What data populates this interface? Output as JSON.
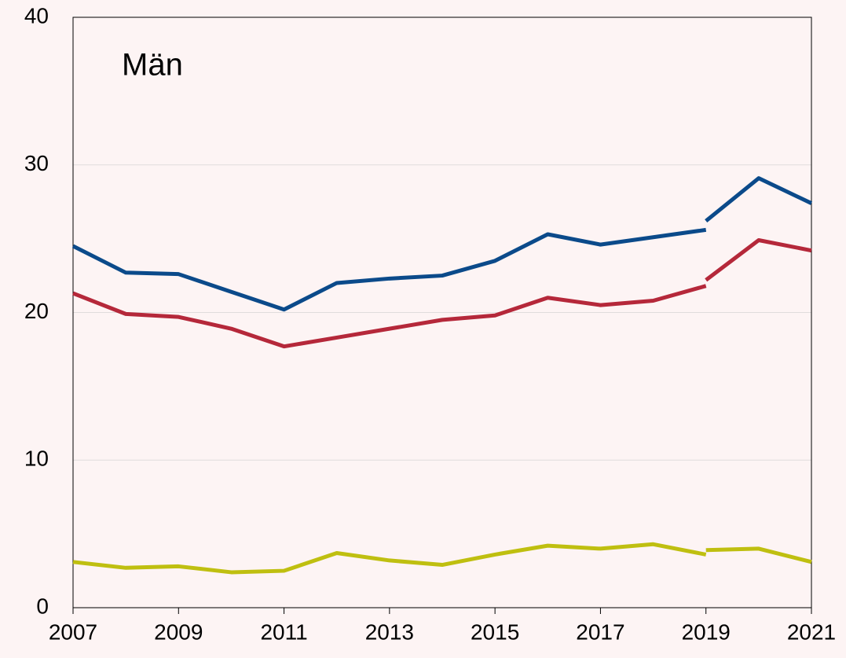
{
  "chart_data": {
    "type": "line",
    "title": "Män",
    "series": [
      {
        "color": "#0b4a8a",
        "x": [
          2007,
          2008,
          2009,
          2010,
          2011,
          2012,
          2013,
          2014,
          2015,
          2016,
          2017,
          2018,
          2019
        ],
        "values": [
          24.5,
          22.7,
          22.6,
          21.4,
          20.2,
          22.0,
          22.3,
          22.5,
          23.5,
          25.3,
          24.6,
          25.1,
          25.6
        ]
      },
      {
        "color": "#0b4a8a",
        "x": [
          2019,
          2020,
          2021
        ],
        "values": [
          26.2,
          29.1,
          27.4
        ]
      },
      {
        "color": "#b5283a",
        "x": [
          2007,
          2008,
          2009,
          2010,
          2011,
          2012,
          2013,
          2014,
          2015,
          2016,
          2017,
          2018,
          2019
        ],
        "values": [
          21.3,
          19.9,
          19.7,
          18.9,
          17.7,
          18.3,
          18.9,
          19.5,
          19.8,
          21.0,
          20.5,
          20.8,
          21.8
        ]
      },
      {
        "color": "#b5283a",
        "x": [
          2019,
          2020,
          2021
        ],
        "values": [
          22.2,
          24.9,
          24.2
        ]
      },
      {
        "color": "#bfbf10",
        "x": [
          2007,
          2008,
          2009,
          2010,
          2011,
          2012,
          2013,
          2014,
          2015,
          2016,
          2017,
          2018,
          2019
        ],
        "values": [
          3.1,
          2.7,
          2.8,
          2.4,
          2.5,
          3.7,
          3.2,
          2.9,
          3.6,
          4.2,
          4.0,
          4.3,
          3.6
        ]
      },
      {
        "color": "#bfbf10",
        "x": [
          2019,
          2020,
          2021
        ],
        "values": [
          3.9,
          4.0,
          3.1
        ]
      }
    ],
    "xlim": [
      2007,
      2021
    ],
    "xticks": [
      2007,
      2009,
      2011,
      2013,
      2015,
      2017,
      2019,
      2021
    ],
    "ylim": [
      0,
      40
    ],
    "yticks": [
      0,
      10,
      20,
      30,
      40
    ],
    "grid": true
  }
}
